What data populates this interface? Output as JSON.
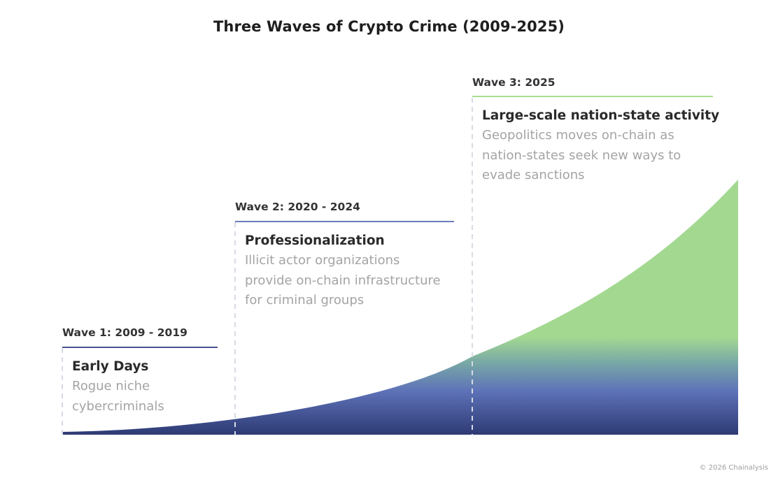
{
  "title": "Three Waves of Crypto Crime (2009-2025)",
  "colors": {
    "wave_1_line": "#4a5490",
    "wave_2_line": "#6d7bb7",
    "wave_3_line": "#a9dc93",
    "curve_top": "#a3d891",
    "curve_mid": "#5e72b8",
    "curve_bottom": "#2d3a74",
    "divider": "#d6dbe5"
  },
  "waves": [
    {
      "label": "Wave 1: 2009 - 2019",
      "heading": "Early Days",
      "description": [
        "Rogue niche",
        "cybercriminals"
      ]
    },
    {
      "label": "Wave 2: 2020 - 2024",
      "heading": "Professionalization",
      "description": [
        "Illicit actor organizations",
        "provide on-chain infrastructure",
        "for criminal groups"
      ]
    },
    {
      "label": "Wave 3: 2025",
      "heading": "Large-scale nation-state activity",
      "description": [
        "Geopolitics moves on-chain as",
        "nation-states seek new ways to",
        "evade sanctions"
      ]
    }
  ],
  "copyright": "© 2026 Chainalysis"
}
